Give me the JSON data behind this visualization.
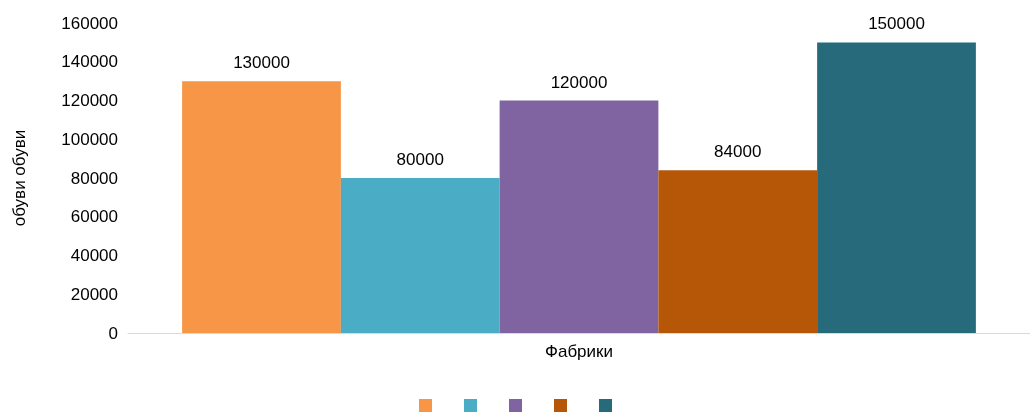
{
  "chart_data": {
    "type": "bar",
    "ylabel": "обуви обуви",
    "categories": [
      "Фабрики"
    ],
    "series": [
      {
        "color": "#f79646",
        "values": [
          130000
        ]
      },
      {
        "color": "#4bacc6",
        "values": [
          80000
        ]
      },
      {
        "color": "#8064a2",
        "values": [
          120000
        ]
      },
      {
        "color": "#b65708",
        "values": [
          84000
        ]
      },
      {
        "color": "#276a7c",
        "values": [
          150000
        ]
      }
    ],
    "ylim": [
      0,
      160000
    ],
    "yticks": [
      0,
      20000,
      40000,
      60000,
      80000,
      100000,
      120000,
      140000,
      160000
    ],
    "grid": false,
    "data_labels": true
  }
}
